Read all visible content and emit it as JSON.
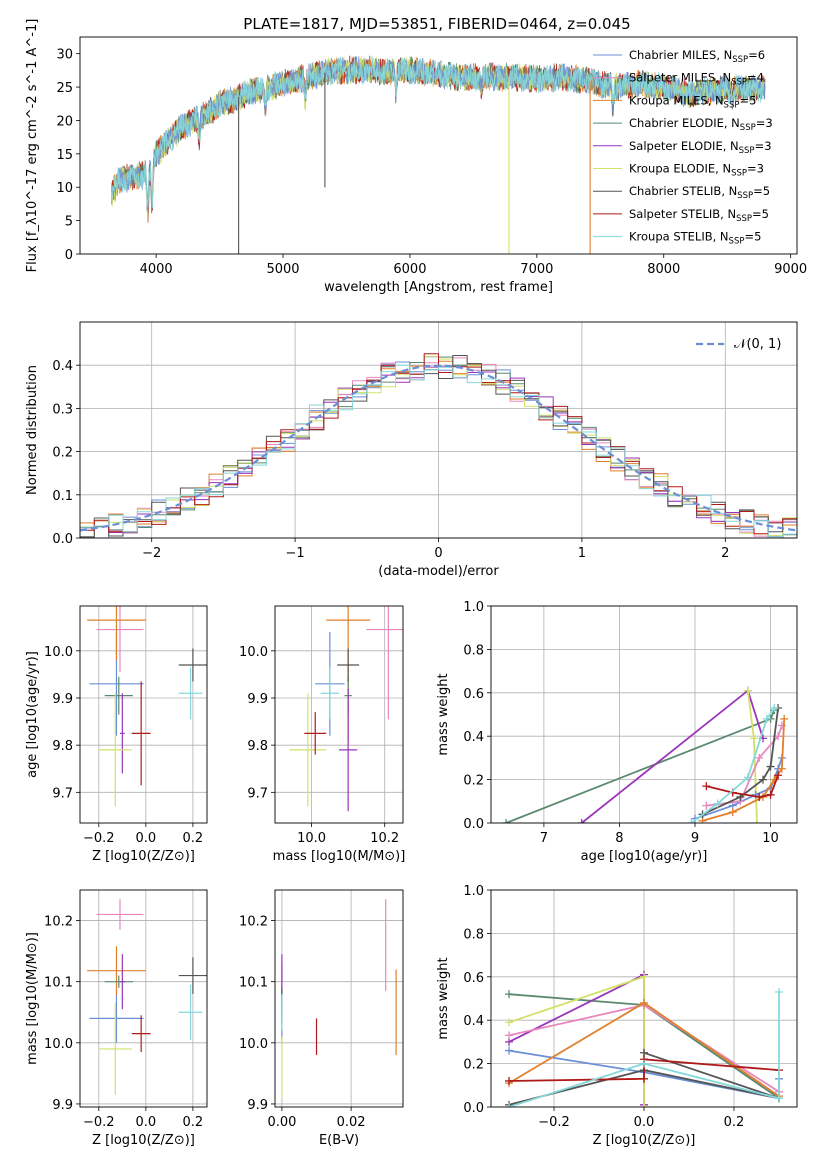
{
  "figure_title": "PLATE=1817, MJD=53851, FIBERID=0464, z=0.045",
  "colors": {
    "Chabrier MILES": "#6b8fd6",
    "Salpeter MILES": "#e887c0",
    "Kroupa MILES": "#e0802a",
    "Chabrier ELODIE": "#5a8a6e",
    "Salpeter ELODIE": "#9a35b8",
    "Kroupa ELODIE": "#d4e06a",
    "Chabrier STELIB": "#555555",
    "Salpeter STELIB": "#b01a1a",
    "Kroupa STELIB": "#86d8da"
  },
  "chart_data": [
    {
      "id": "spectrum",
      "type": "line",
      "title": "PLATE=1817, MJD=53851, FIBERID=0464, z=0.045",
      "xlabel": "wavelength [Angstrom, rest frame]",
      "ylabel": "Flux [f_λ10^-17 erg cm^-2 s^-1 A^-1]",
      "xlim": [
        3400,
        9050
      ],
      "ylim": [
        0,
        32.5
      ],
      "xticks": [
        4000,
        5000,
        6000,
        7000,
        8000,
        9000
      ],
      "yticks": [
        0,
        5,
        10,
        15,
        20,
        25,
        30
      ],
      "grid": false,
      "legend_position": "top-right",
      "legend": [
        {
          "label": "Chabrier MILES, N",
          "sub": "SSP",
          "suffix": "=6"
        },
        {
          "label": "Salpeter MILES, N",
          "sub": "SSP",
          "suffix": "=4"
        },
        {
          "label": "Kroupa MILES, N",
          "sub": "SSP",
          "suffix": "=5"
        },
        {
          "label": "Chabrier ELODIE, N",
          "sub": "SSP",
          "suffix": "=3"
        },
        {
          "label": "Salpeter ELODIE, N",
          "sub": "SSP",
          "suffix": "=3"
        },
        {
          "label": "Kroupa ELODIE, N",
          "sub": "SSP",
          "suffix": "=3"
        },
        {
          "label": "Chabrier STELIB, N",
          "sub": "SSP",
          "suffix": "=5"
        },
        {
          "label": "Salpeter STELIB, N",
          "sub": "SSP",
          "suffix": "=5"
        },
        {
          "label": "Kroupa STELIB, N",
          "sub": "SSP",
          "suffix": "=5"
        }
      ],
      "continuum": [
        [
          3650,
          9
        ],
        [
          3700,
          11
        ],
        [
          3800,
          11.5
        ],
        [
          3900,
          11.8
        ],
        [
          3950,
          12.5
        ],
        [
          4000,
          15
        ],
        [
          4100,
          17
        ],
        [
          4200,
          19
        ],
        [
          4300,
          20
        ],
        [
          4400,
          21
        ],
        [
          4500,
          22.5
        ],
        [
          4600,
          23
        ],
        [
          4700,
          24
        ],
        [
          4800,
          24.5
        ],
        [
          4900,
          25
        ],
        [
          5000,
          25.5
        ],
        [
          5100,
          26
        ],
        [
          5200,
          26.5
        ],
        [
          5300,
          27
        ],
        [
          5400,
          27.5
        ],
        [
          5500,
          27.5
        ],
        [
          5600,
          27.5
        ],
        [
          5700,
          27.5
        ],
        [
          5800,
          27.3
        ],
        [
          5900,
          27.5
        ],
        [
          6000,
          27.5
        ],
        [
          6200,
          27
        ],
        [
          6400,
          26.5
        ],
        [
          6600,
          26.5
        ],
        [
          6800,
          26.5
        ],
        [
          7000,
          26.2
        ],
        [
          7200,
          26.5
        ],
        [
          7400,
          26
        ],
        [
          7600,
          25
        ],
        [
          7800,
          25.5
        ],
        [
          8000,
          25
        ],
        [
          8200,
          24
        ],
        [
          8400,
          24.5
        ],
        [
          8600,
          24.8
        ],
        [
          8800,
          24.8
        ]
      ],
      "absorptions": [
        [
          3934,
          6
        ],
        [
          3968,
          6
        ],
        [
          4340,
          3
        ],
        [
          4861,
          3
        ],
        [
          5175,
          3
        ],
        [
          5890,
          3
        ],
        [
          6563,
          2
        ],
        [
          7600,
          3
        ],
        [
          8542,
          2
        ]
      ],
      "drops": [
        {
          "x": 4650,
          "ymin": 0,
          "color": "#555555"
        },
        {
          "x": 5330,
          "ymin": 10,
          "color": "#555555"
        },
        {
          "x": 6780,
          "ymin": 0,
          "color": "#d4e06a"
        },
        {
          "x": 7420,
          "ymin": 0,
          "color": "#e0802a"
        }
      ]
    },
    {
      "id": "residuals",
      "type": "histogram",
      "xlabel": "(data-model)/error",
      "ylabel": "Normed distribution",
      "xlim": [
        -2.5,
        2.5
      ],
      "ylim": [
        0,
        0.5
      ],
      "xticks": [
        -2,
        -1,
        0,
        1,
        2
      ],
      "yticks": [
        0.0,
        0.1,
        0.2,
        0.3,
        0.4
      ],
      "grid": true,
      "legend_position": "top-right",
      "legend": [
        {
          "label": "𝒩(0, 1)",
          "style": "dashed",
          "color": "#6b8fd6"
        }
      ],
      "bins": {
        "start": -2.5,
        "width": 0.1,
        "count": 50
      },
      "gaussian": {
        "mu": 0,
        "sigma": 1
      }
    },
    {
      "id": "age_vs_Z",
      "type": "errorbar",
      "xlabel": "Z [log10(Z/Z⊙)]",
      "ylabel": "age  [log10(age/yr)]",
      "xlim": [
        -0.28,
        0.26
      ],
      "ylim": [
        9.635,
        10.095
      ],
      "xticks": [
        -0.2,
        0.0,
        0.2
      ],
      "yticks": [
        9.7,
        9.8,
        9.9,
        10.0
      ],
      "grid": true,
      "points": [
        {
          "model": "Chabrier MILES",
          "x": -0.125,
          "xerr": 0.115,
          "y": 9.93,
          "yerr": 0.11
        },
        {
          "model": "Salpeter MILES",
          "x": -0.11,
          "xerr": 0.1,
          "y": 10.045,
          "yerr": 0.09
        },
        {
          "model": "Kroupa MILES",
          "x": -0.125,
          "xerr": 0.125,
          "y": 10.065,
          "yerr": 0.085
        },
        {
          "model": "Chabrier ELODIE",
          "x": -0.115,
          "xerr": 0.06,
          "y": 9.905,
          "yerr": 0.04
        },
        {
          "model": "Salpeter ELODIE",
          "x": -0.1,
          "xerr": 0.01,
          "y": 9.825,
          "yerr": 0.085
        },
        {
          "model": "Kroupa ELODIE",
          "x": -0.13,
          "xerr": 0.07,
          "y": 9.79,
          "yerr": 0.12
        },
        {
          "model": "Chabrier STELIB",
          "x": 0.2,
          "xerr": 0.06,
          "y": 9.97,
          "yerr": 0.035
        },
        {
          "model": "Salpeter STELIB",
          "x": -0.02,
          "xerr": 0.04,
          "y": 9.825,
          "yerr": 0.11
        },
        {
          "model": "Kroupa STELIB",
          "x": 0.19,
          "xerr": 0.05,
          "y": 9.91,
          "yerr": 0.055
        }
      ]
    },
    {
      "id": "age_vs_mass",
      "type": "errorbar",
      "xlabel": "mass [log10(M/M⊙)]",
      "ylabel": "",
      "xlim": [
        9.9,
        10.25
      ],
      "ylim": [
        9.635,
        10.095
      ],
      "xticks": [
        10.0,
        10.2
      ],
      "yticks": [
        9.7,
        9.8,
        9.9,
        10.0
      ],
      "grid": true,
      "points": [
        {
          "model": "Chabrier MILES",
          "x": 10.05,
          "xerr": 0.04,
          "y": 9.93,
          "yerr": 0.11
        },
        {
          "model": "Salpeter MILES",
          "x": 10.21,
          "xerr": 0.06,
          "y": 10.045,
          "yerr": 0.19
        },
        {
          "model": "Kroupa MILES",
          "x": 10.1,
          "xerr": 0.06,
          "y": 10.065,
          "yerr": 0.255
        },
        {
          "model": "Chabrier ELODIE",
          "x": 10.1,
          "xerr": 0.01,
          "y": 9.905,
          "yerr": 0.04
        },
        {
          "model": "Salpeter ELODIE",
          "x": 10.1,
          "xerr": 0.025,
          "y": 9.79,
          "yerr": 0.13
        },
        {
          "model": "Kroupa ELODIE",
          "x": 9.99,
          "xerr": 0.05,
          "y": 9.79,
          "yerr": 0.12
        },
        {
          "model": "Chabrier STELIB",
          "x": 10.1,
          "xerr": 0.03,
          "y": 9.97,
          "yerr": 0.035
        },
        {
          "model": "Salpeter STELIB",
          "x": 10.01,
          "xerr": 0.03,
          "y": 9.825,
          "yerr": 0.045
        },
        {
          "model": "Kroupa STELIB",
          "x": 10.05,
          "xerr": 0.025,
          "y": 9.91,
          "yerr": 0.055
        }
      ]
    },
    {
      "id": "weight_vs_age",
      "type": "line",
      "xlabel": "age  [log10(age/yr)]",
      "ylabel": "mass weight",
      "xlim": [
        6.3,
        10.35
      ],
      "ylim": [
        0,
        1.0
      ],
      "xticks": [
        7,
        8,
        9,
        10
      ],
      "yticks": [
        0.0,
        0.2,
        0.4,
        0.6,
        0.8,
        1.0
      ],
      "grid": true,
      "series": [
        {
          "model": "Chabrier ELODIE",
          "x": [
            6.5,
            10.0,
            10.05
          ],
          "y": [
            0.0,
            0.48,
            0.52
          ]
        },
        {
          "model": "Salpeter ELODIE",
          "x": [
            7.5,
            9.7,
            9.9
          ],
          "y": [
            0.0,
            0.61,
            0.39
          ]
        },
        {
          "model": "Kroupa ELODIE",
          "x": [
            9.7,
            9.78,
            9.82
          ],
          "y": [
            0.61,
            0.39,
            0.0
          ]
        },
        {
          "model": "Chabrier MILES",
          "x": [
            9.0,
            9.5,
            9.8,
            10.0,
            10.1,
            10.15
          ],
          "y": [
            0.02,
            0.08,
            0.13,
            0.16,
            0.25,
            0.3
          ]
        },
        {
          "model": "Salpeter MILES",
          "x": [
            9.15,
            9.6,
            9.85,
            10.1,
            10.15
          ],
          "y": [
            0.08,
            0.1,
            0.3,
            0.4,
            0.45
          ]
        },
        {
          "model": "Kroupa MILES",
          "x": [
            9.1,
            9.5,
            9.9,
            10.05,
            10.15,
            10.18
          ],
          "y": [
            0.01,
            0.05,
            0.12,
            0.2,
            0.25,
            0.48
          ]
        },
        {
          "model": "Chabrier STELIB",
          "x": [
            9.1,
            9.6,
            9.9,
            10.0,
            10.1
          ],
          "y": [
            0.04,
            0.12,
            0.2,
            0.26,
            0.53
          ]
        },
        {
          "model": "Salpeter STELIB",
          "x": [
            9.15,
            9.5,
            9.85,
            10.0,
            10.1
          ],
          "y": [
            0.17,
            0.14,
            0.12,
            0.13,
            0.22
          ]
        },
        {
          "model": "Kroupa STELIB",
          "x": [
            8.95,
            9.3,
            9.7,
            9.95,
            10.05
          ],
          "y": [
            0.0,
            0.09,
            0.21,
            0.48,
            0.53
          ]
        }
      ]
    },
    {
      "id": "mass_vs_Z",
      "type": "errorbar",
      "xlabel": "Z [log10(Z/Z⊙)]",
      "ylabel": "mass [log10(M/M⊙)]",
      "xlim": [
        -0.28,
        0.26
      ],
      "ylim": [
        9.895,
        10.25
      ],
      "xticks": [
        -0.2,
        0.0,
        0.2
      ],
      "yticks": [
        9.9,
        10.0,
        10.1,
        10.2
      ],
      "grid": true,
      "points": [
        {
          "model": "Chabrier MILES",
          "x": -0.125,
          "xerr": 0.115,
          "y": 10.04,
          "yerr": 0.04
        },
        {
          "model": "Salpeter MILES",
          "x": -0.11,
          "xerr": 0.1,
          "y": 10.21,
          "yerr": 0.025
        },
        {
          "model": "Kroupa MILES",
          "x": -0.125,
          "xerr": 0.125,
          "y": 10.118,
          "yerr": 0.04
        },
        {
          "model": "Chabrier ELODIE",
          "x": -0.115,
          "xerr": 0.06,
          "y": 10.1,
          "yerr": 0.01
        },
        {
          "model": "Salpeter ELODIE",
          "x": -0.1,
          "xerr": 0.01,
          "y": 10.1,
          "yerr": 0.045
        },
        {
          "model": "Kroupa ELODIE",
          "x": -0.13,
          "xerr": 0.07,
          "y": 9.99,
          "yerr": 0.075
        },
        {
          "model": "Chabrier STELIB",
          "x": 0.2,
          "xerr": 0.06,
          "y": 10.11,
          "yerr": 0.03
        },
        {
          "model": "Salpeter STELIB",
          "x": -0.02,
          "xerr": 0.04,
          "y": 10.015,
          "yerr": 0.03
        },
        {
          "model": "Kroupa STELIB",
          "x": 0.19,
          "xerr": 0.05,
          "y": 10.05,
          "yerr": 0.045
        }
      ]
    },
    {
      "id": "mass_vs_EBV",
      "type": "errorbar",
      "xlabel": "E(B-V)",
      "ylabel": "",
      "xlim": [
        -0.002,
        0.035
      ],
      "ylim": [
        9.895,
        10.25
      ],
      "xticks": [
        0.0,
        0.02
      ],
      "yticks": [
        9.9,
        10.0,
        10.1,
        10.2
      ],
      "grid": true,
      "points": [
        {
          "model": "Chabrier MILES",
          "x": 0.0,
          "xerr": 0.0,
          "y": 10.04,
          "yerr": 0.04
        },
        {
          "model": "Salpeter MILES",
          "x": 0.03,
          "xerr": 0.0,
          "y": 10.16,
          "yerr": 0.075
        },
        {
          "model": "Kroupa MILES",
          "x": 0.033,
          "xerr": 0.0,
          "y": 10.05,
          "yerr": 0.07
        },
        {
          "model": "Chabrier ELODIE",
          "x": 0.0,
          "xerr": 0.0,
          "y": 10.1,
          "yerr": 0.03
        },
        {
          "model": "Salpeter ELODIE",
          "x": 0.0,
          "xerr": 0.0,
          "y": 10.1,
          "yerr": 0.045
        },
        {
          "model": "Kroupa ELODIE",
          "x": 0.0,
          "xerr": 0.0,
          "y": 9.96,
          "yerr": 0.05
        },
        {
          "model": "Chabrier STELIB",
          "x": 0.0,
          "xerr": 0.0,
          "y": 10.06,
          "yerr": 0.03
        },
        {
          "model": "Salpeter STELIB",
          "x": 0.01,
          "xerr": 0.0,
          "y": 10.01,
          "yerr": 0.03
        },
        {
          "model": "Kroupa STELIB",
          "x": 0.0,
          "xerr": 0.0,
          "y": 10.05,
          "yerr": 0.03
        }
      ]
    },
    {
      "id": "weight_vs_Z",
      "type": "line",
      "xlabel": "Z [log10(Z/Z⊙)]",
      "ylabel": "mass weight",
      "xlim": [
        -0.34,
        0.34
      ],
      "ylim": [
        0,
        1.0
      ],
      "xticks": [
        -0.2,
        0.0,
        0.2
      ],
      "yticks": [
        0.0,
        0.2,
        0.4,
        0.6,
        0.8,
        1.0
      ],
      "grid": true,
      "series": [
        {
          "model": "Chabrier ELODIE",
          "x": [
            -0.3,
            0.0,
            0.3
          ],
          "y": [
            0.52,
            0.47,
            0.04
          ]
        },
        {
          "model": "Salpeter ELODIE",
          "x": [
            -0.3,
            0.0,
            0.0
          ],
          "y": [
            0.3,
            0.61,
            0.01
          ]
        },
        {
          "model": "Kroupa ELODIE",
          "x": [
            -0.3,
            0.0,
            0.0
          ],
          "y": [
            0.39,
            0.6,
            0.0
          ]
        },
        {
          "model": "Chabrier MILES",
          "x": [
            -0.3,
            0.0,
            0.3,
            0.3
          ],
          "y": [
            0.26,
            0.16,
            0.04,
            0.13
          ]
        },
        {
          "model": "Salpeter MILES",
          "x": [
            -0.3,
            0.0,
            0.3
          ],
          "y": [
            0.33,
            0.47,
            0.07
          ]
        },
        {
          "model": "Kroupa MILES",
          "x": [
            -0.3,
            0.0,
            0.3
          ],
          "y": [
            0.11,
            0.48,
            0.05
          ]
        },
        {
          "model": "Chabrier STELIB",
          "x": [
            -0.3,
            0.0,
            0.3,
            0.0
          ],
          "y": [
            0.01,
            0.17,
            0.04,
            0.25
          ]
        },
        {
          "model": "Salpeter STELIB",
          "x": [
            -0.3,
            0.0,
            0.0,
            0.3
          ],
          "y": [
            0.12,
            0.13,
            0.22,
            0.17
          ]
        },
        {
          "model": "Kroupa STELIB",
          "x": [
            -0.3,
            0.0,
            0.3,
            0.3
          ],
          "y": [
            0.0,
            0.2,
            0.04,
            0.53
          ]
        }
      ]
    }
  ]
}
